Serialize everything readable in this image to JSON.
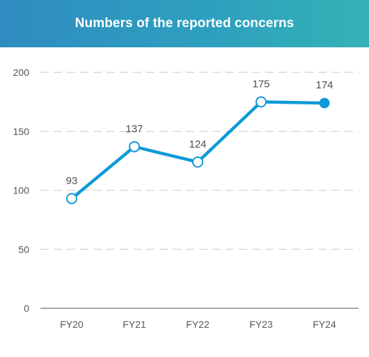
{
  "header": {
    "title": "Numbers of the reported concerns",
    "gradient_start": "#2f8cc0",
    "gradient_end": "#33b2b6"
  },
  "chart_data": {
    "type": "line",
    "title": "Numbers of the reported concerns",
    "xlabel": "",
    "ylabel": "",
    "categories": [
      "FY20",
      "FY21",
      "FY22",
      "FY23",
      "FY24"
    ],
    "series": [
      {
        "values": [
          93,
          137,
          124,
          175,
          174
        ],
        "color": "#0e9ad8"
      }
    ],
    "ylim": [
      0,
      200
    ],
    "yticks": [
      0,
      50,
      100,
      150,
      200
    ],
    "data_labels": true,
    "grid": true,
    "legend": "none",
    "last_point_filled": true
  }
}
